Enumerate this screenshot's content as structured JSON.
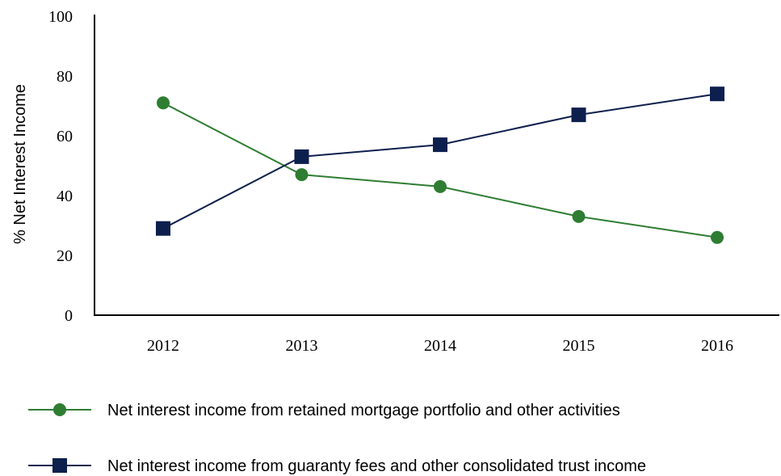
{
  "chart_data": {
    "type": "line",
    "title": "",
    "xlabel": "",
    "ylabel": "% Net Interest Income",
    "ylim": [
      0,
      100
    ],
    "yticks": [
      "0",
      "20",
      "40",
      "60",
      "80",
      "100"
    ],
    "categories": [
      "2012",
      "2013",
      "2014",
      "2015",
      "2016"
    ],
    "grid": false,
    "legend_position": "bottom",
    "series": [
      {
        "name": "Net interest income from retained mortgage portfolio and other activities",
        "values": [
          71,
          47,
          43,
          33,
          26
        ],
        "color": "#2e7d32",
        "marker": "circle"
      },
      {
        "name": "Net interest income from guaranty fees and other consolidated trust income",
        "values": [
          29,
          53,
          57,
          67,
          74
        ],
        "color": "#0d1f4d",
        "marker": "square"
      }
    ]
  }
}
